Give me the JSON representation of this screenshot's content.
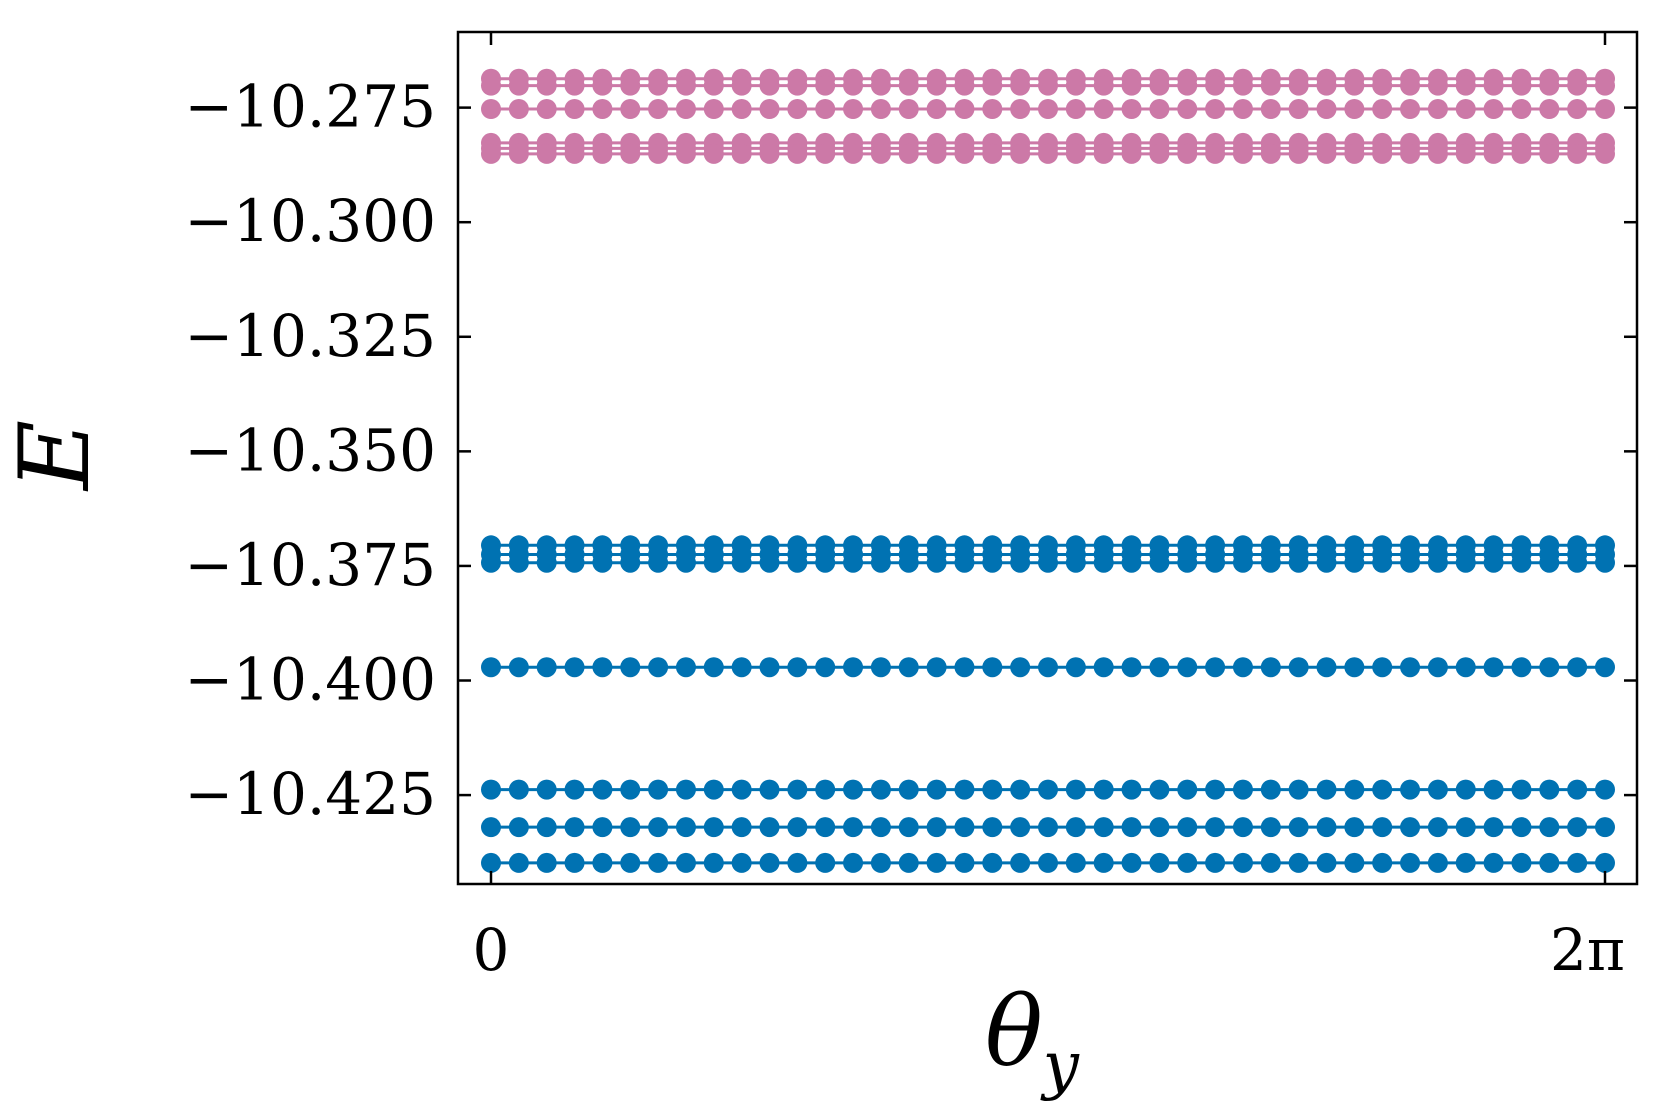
{
  "chart_data": {
    "type": "line",
    "title": "",
    "xlabel": "θ",
    "xlabel_sub": "y",
    "ylabel": "E",
    "xlim": [
      0,
      6.2832
    ],
    "ylim": [
      -10.4444,
      -10.2585
    ],
    "x_tick_values": [
      0,
      6.2832
    ],
    "x_tick_labels": [
      "0",
      "2π"
    ],
    "y_tick_values": [
      -10.275,
      -10.3,
      -10.325,
      -10.35,
      -10.375,
      -10.4,
      -10.425
    ],
    "y_tick_labels": [
      "−10.275",
      "−10.300",
      "−10.325",
      "−10.350",
      "−10.375",
      "−10.400",
      "−10.425"
    ],
    "grid": false,
    "legend": "none",
    "markers": "filled circles joined by lines",
    "points_per_level": 41,
    "series": [
      {
        "color": "#cc79a7",
        "levels": [
          -10.2687,
          -10.2702,
          -10.2753,
          -10.2827,
          -10.2839,
          -10.2851
        ]
      },
      {
        "color": "#0072b2",
        "levels": [
          -10.3705,
          -10.3725,
          -10.3743,
          -10.3971,
          -10.4238,
          -10.432,
          -10.4398
        ]
      }
    ]
  }
}
